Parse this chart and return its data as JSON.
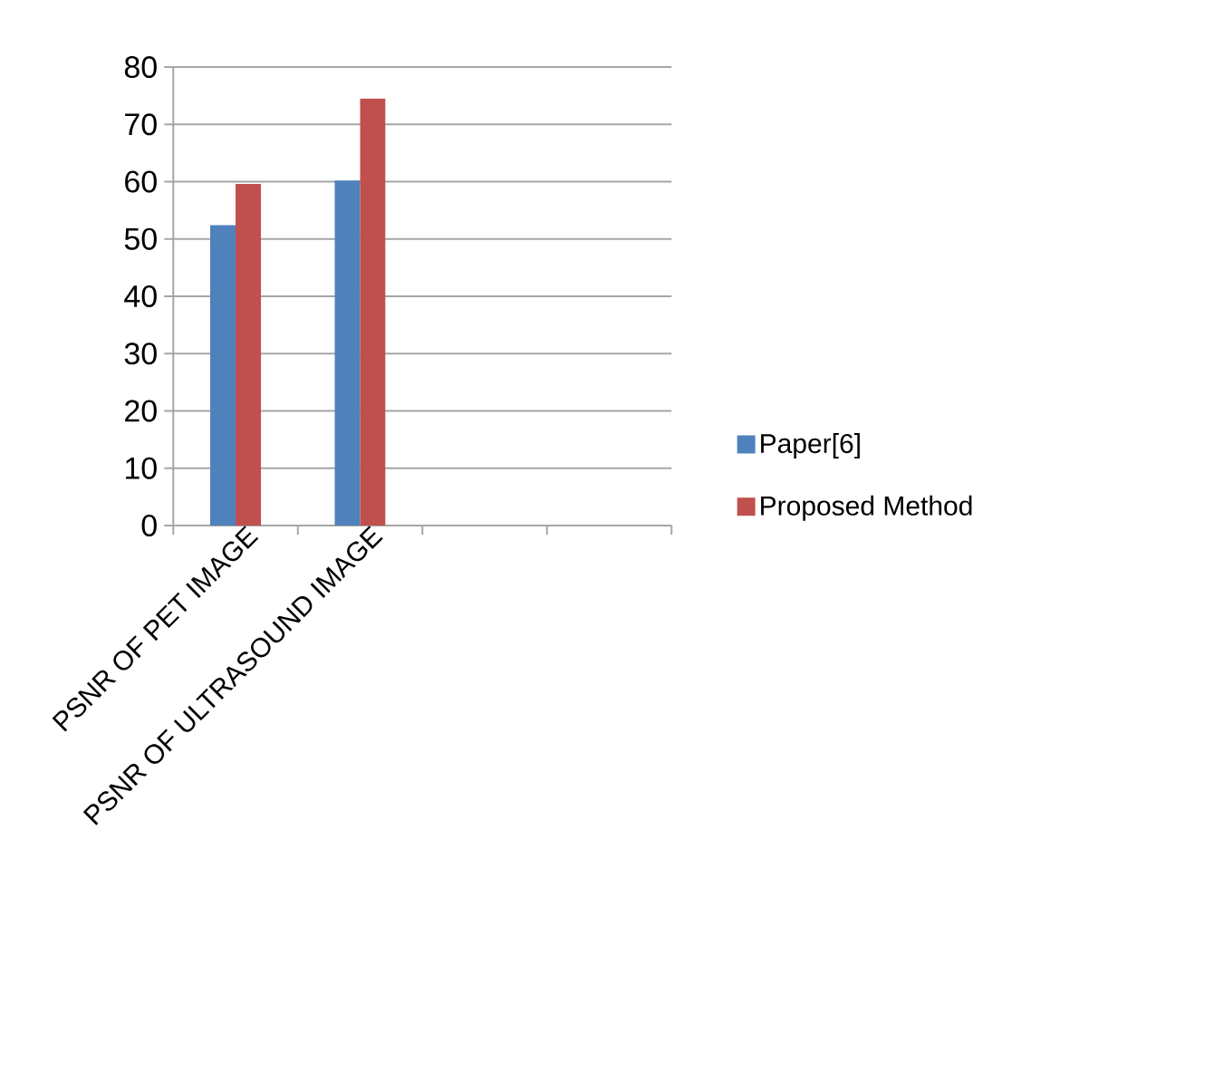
{
  "chart_data": {
    "type": "bar",
    "categories": [
      "PSNR OF PET IMAGE",
      "PSNR OF ULTRASOUND IMAGE",
      null,
      null
    ],
    "series": [
      {
        "name": "Paper[6]",
        "color": "#4f81bd",
        "values": [
          52.4,
          60.2,
          null,
          null
        ]
      },
      {
        "name": "Proposed Method",
        "color": "#c0504d",
        "values": [
          59.6,
          74.5,
          null,
          null
        ]
      }
    ],
    "ylim": [
      0,
      80
    ],
    "yticks": [
      0,
      10,
      20,
      30,
      40,
      50,
      60,
      70,
      80
    ],
    "grid": "y",
    "legend": "right"
  }
}
